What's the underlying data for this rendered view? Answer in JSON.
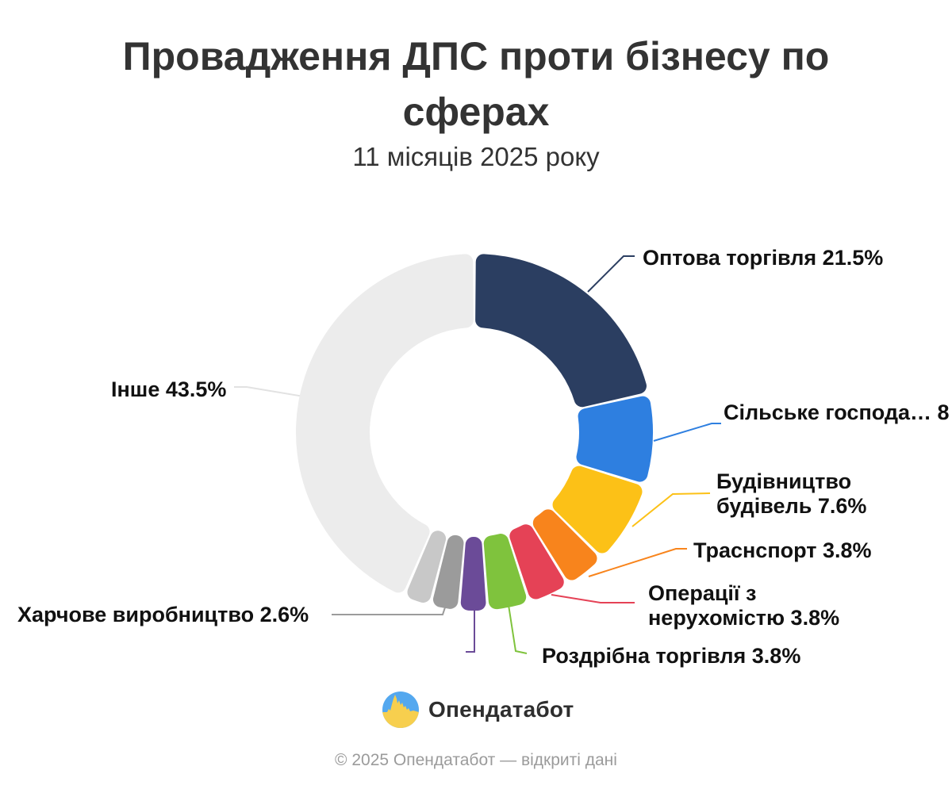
{
  "header": {
    "title": "Провадження ДПС проти бізнесу по сферах",
    "subtitle": "11 місяців 2025 року"
  },
  "chart_data": {
    "type": "pie",
    "shape": "donut",
    "unit": "%",
    "start_angle_deg": 0,
    "clockwise": true,
    "legend": "none",
    "slices": [
      {
        "slug": "optova-torhivlia",
        "label": "Оптова торгівля",
        "value": 21.5,
        "color": "#2B3E61",
        "callout": "Оптова торгівля 21.5%"
      },
      {
        "slug": "silske-hospodarstvo",
        "label": "Сільське господа…",
        "value": 8.3,
        "color": "#2E7FE0",
        "callout": "Сільське господа… 8"
      },
      {
        "slug": "budivnytstvo-budivel",
        "label": "Будівництво будівель",
        "value": 7.6,
        "color": "#FCC117",
        "callout": "Будівництво\nбудівель 7.6%"
      },
      {
        "slug": "transport",
        "label": "Траснспорт",
        "value": 3.8,
        "color": "#F8841C",
        "callout": "Траснспорт 3.8%"
      },
      {
        "slug": "operatsii-z-nerukhomistiu",
        "label": "Операції з нерухомістю",
        "value": 3.8,
        "color": "#E54256",
        "callout": "Операції з\nнерухомістю 3.8%"
      },
      {
        "slug": "rozdribna-torhivlia",
        "label": "Роздрібна торгівля",
        "value": 3.8,
        "color": "#7FC33D",
        "callout": "Роздрібна торгівля 3.8%"
      },
      {
        "slug": "purple-unlabeled",
        "label": "",
        "value": 2.6,
        "color": "#6B4B98",
        "callout": ""
      },
      {
        "slug": "kharchove-vyrobnytstvo",
        "label": "Харчове виробництво",
        "value": 2.6,
        "color": "#9B9B9B",
        "callout": "Харчове виробництво 2.6%"
      },
      {
        "slug": "light-gray-unlabeled",
        "label": "",
        "value": 2.5,
        "color": "#C8C8C8",
        "callout": ""
      },
      {
        "slug": "inshe",
        "label": "Інше",
        "value": 43.5,
        "color": "#ECECEC",
        "callout": "Інше 43.5%"
      }
    ]
  },
  "logo": {
    "text": "Опендатабот",
    "colors": {
      "blue": "#54A8EF",
      "yellow": "#F7CF4E"
    }
  },
  "footer": {
    "text": "© 2025 Опендатабот — відкриті дані"
  }
}
